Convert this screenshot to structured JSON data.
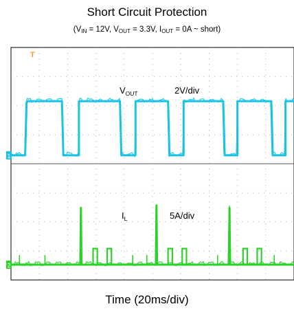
{
  "chart_data": {
    "type": "line",
    "title": "Short Circuit Protection",
    "subtitle": {
      "parts": [
        "(V",
        "IN",
        " = 12V,  V",
        "OUT",
        " = 3.3V,  I",
        "OUT",
        " = 0A ~ short)"
      ]
    },
    "xlabel": "Time (20ms/div)",
    "x_divisions": 10,
    "y_divisions": 8,
    "series": [
      {
        "label": "V",
        "label_sub": "OUT",
        "scale": "2V/div",
        "color": "#19c3e6",
        "channel_marker": "1",
        "unit": "div",
        "baseline_div": 0,
        "x": [
          0,
          0.5,
          0.55,
          0.6,
          1.8,
          1.85,
          2.4,
          2.4,
          3.85,
          3.9,
          4.4,
          4.4,
          5.55,
          5.6,
          6.1,
          6.1,
          7.5,
          7.55,
          8.0,
          8.0,
          9.2,
          9.25,
          9.7,
          9.7,
          10
        ],
        "y": [
          0,
          0,
          2.5,
          2.55,
          2.55,
          0,
          0,
          2.55,
          2.55,
          0,
          0,
          2.55,
          2.55,
          0,
          0,
          2.55,
          2.55,
          0,
          0,
          2.55,
          2.55,
          0,
          0,
          2.55,
          2.55
        ]
      },
      {
        "label": "I",
        "label_sub": "L",
        "scale": "5A/div",
        "color": "#2bd229",
        "channel_marker": "2",
        "unit": "div",
        "baseline_div": 0,
        "x": [
          0,
          2.45,
          2.47,
          2.49,
          5.12,
          5.14,
          5.16,
          7.7,
          7.72,
          7.74,
          10
        ],
        "y": [
          0,
          0,
          2.3,
          0,
          0,
          2.4,
          0,
          0,
          2.3,
          0,
          0
        ],
        "small_pulses": [
          {
            "x": 2.9,
            "width": 0.15,
            "height": 0.65
          },
          {
            "x": 3.4,
            "width": 0.15,
            "height": 0.65
          },
          {
            "x": 5.55,
            "width": 0.15,
            "height": 0.65
          },
          {
            "x": 6.05,
            "width": 0.15,
            "height": 0.65
          },
          {
            "x": 8.2,
            "width": 0.15,
            "height": 0.65
          },
          {
            "x": 8.7,
            "width": 0.15,
            "height": 0.65
          }
        ],
        "spikes_near_zero": [
          4.3,
          4.8,
          7.3,
          9.3,
          0.3,
          1.2
        ]
      }
    ],
    "trigger_marker": "T"
  }
}
